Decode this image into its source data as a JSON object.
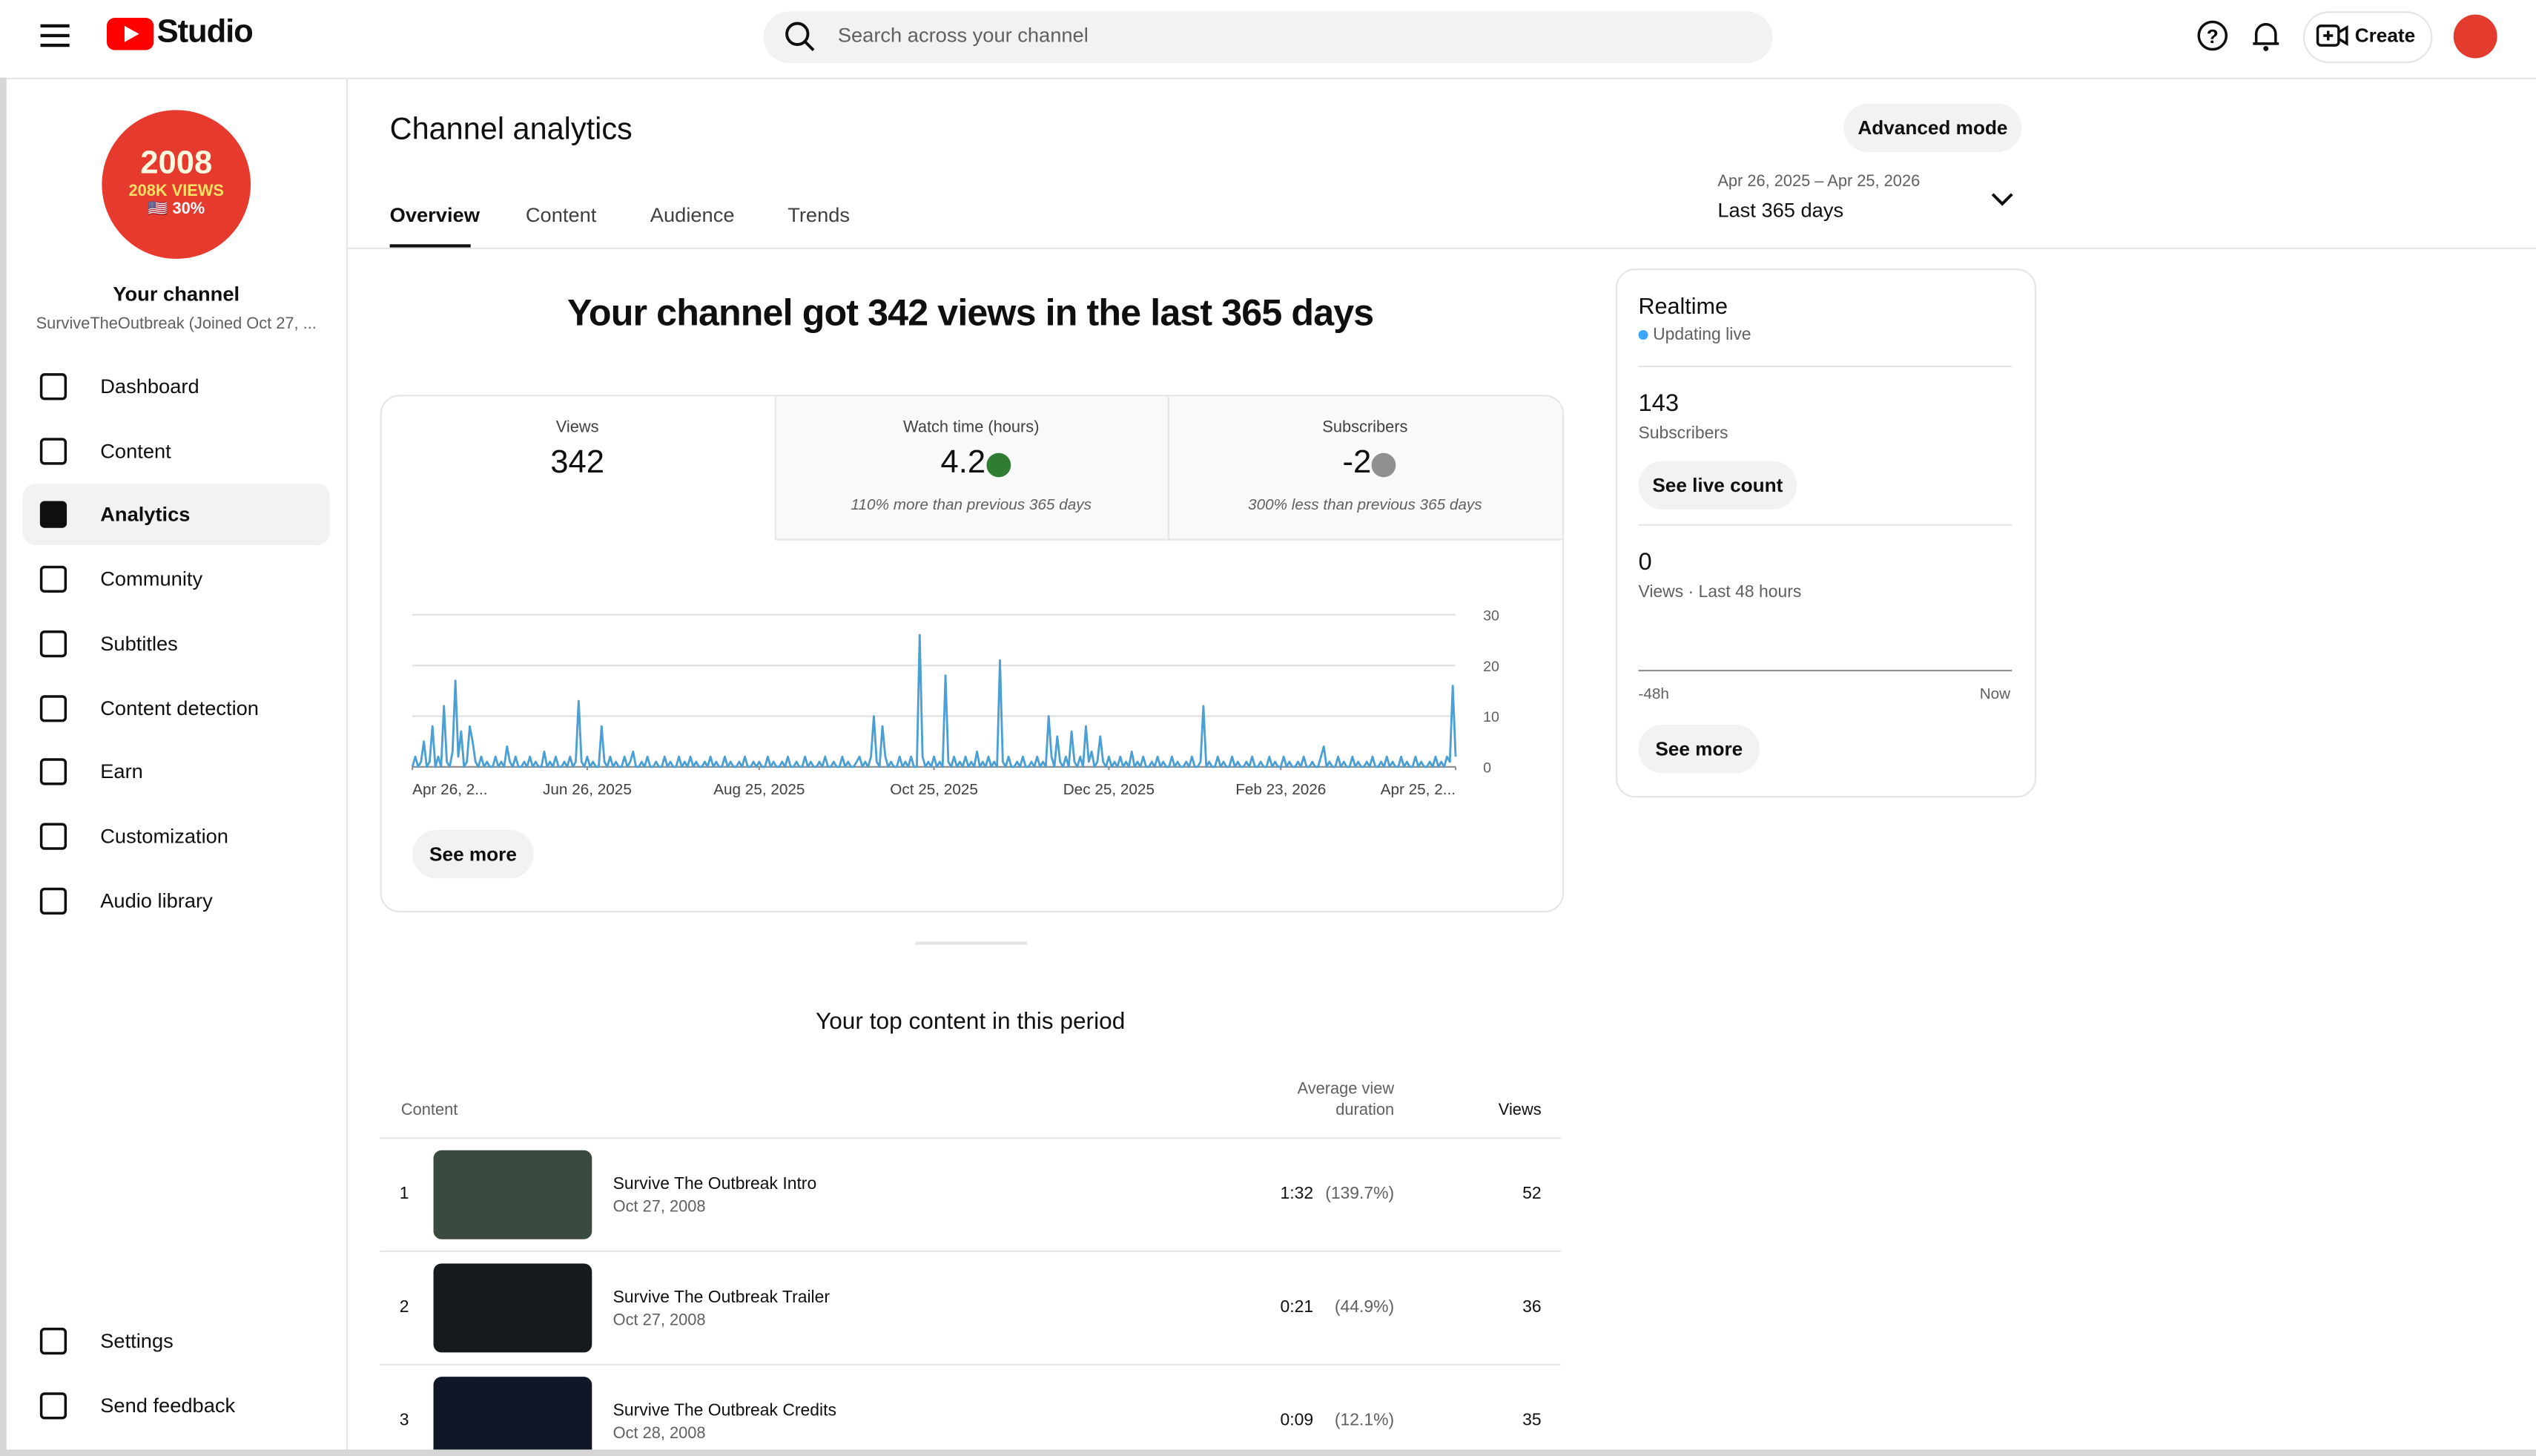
{
  "header": {
    "logo": "Studio",
    "search_placeholder": "Search across your channel",
    "create": "Create"
  },
  "sidebar": {
    "avatar": {
      "line1": "2008",
      "line2": "208K VIEWS",
      "line3": "🇺🇸 30%"
    },
    "title": "Your channel",
    "subtitle": "SurviveTheOutbreak (Joined Oct 27, ...",
    "nav": [
      "Dashboard",
      "Content",
      "Analytics",
      "Community",
      "Subtitles",
      "Content detection",
      "Earn",
      "Customization",
      "Audio library"
    ],
    "footer": [
      "Settings",
      "Send feedback"
    ]
  },
  "page": {
    "title": "Channel analytics",
    "advanced": "Advanced mode",
    "date_range": "Apr 26, 2025 – Apr 25, 2026",
    "period": "Last 365 days",
    "tabs": [
      "Overview",
      "Content",
      "Audience",
      "Trends"
    ]
  },
  "summary": {
    "headline": "Your channel got 342 views in the last 365 days",
    "metrics": [
      {
        "label": "Views",
        "value": 342
      },
      {
        "label": "Watch time (hours)",
        "value": 4.2,
        "note": "110% more than previous 365 days"
      },
      {
        "label": "Subscribers",
        "value": -2,
        "note": "300% less than previous 365 days"
      }
    ],
    "see_more": "See more"
  },
  "chart_data": {
    "type": "line",
    "color": "#4a9fd4",
    "grid": true,
    "ylim": [
      0,
      30
    ],
    "yticks": [
      0,
      10,
      20,
      30
    ],
    "xlim": [
      0,
      364
    ],
    "xticks": [
      {
        "value": 0,
        "label": "Apr 26, 2..."
      },
      {
        "value": 61,
        "label": "Jun 26, 2025"
      },
      {
        "value": 121,
        "label": "Aug 25, 2025"
      },
      {
        "value": 182,
        "label": "Oct 25, 2025"
      },
      {
        "value": 243,
        "label": "Dec 25, 2025"
      },
      {
        "value": 303,
        "label": "Feb 23, 2026"
      },
      {
        "value": 364,
        "label": "Apr 25, 2..."
      }
    ],
    "values": [
      0,
      2,
      0,
      1,
      5,
      0,
      1,
      8,
      0,
      2,
      0,
      12,
      1,
      0,
      3,
      17,
      2,
      7,
      0,
      1,
      8,
      5,
      1,
      0,
      2,
      0,
      1,
      0,
      0,
      2,
      0,
      1,
      0,
      4,
      1,
      0,
      2,
      0,
      0,
      1,
      0,
      2,
      0,
      1,
      0,
      0,
      3,
      0,
      1,
      0,
      2,
      0,
      0,
      1,
      0,
      2,
      0,
      1,
      13,
      1,
      0,
      2,
      0,
      1,
      0,
      0,
      8,
      1,
      0,
      2,
      0,
      1,
      0,
      0,
      2,
      0,
      1,
      3,
      0,
      0,
      1,
      0,
      2,
      0,
      0,
      1,
      0,
      0,
      2,
      0,
      1,
      0,
      0,
      2,
      0,
      1,
      0,
      2,
      0,
      1,
      0,
      0,
      1,
      0,
      2,
      0,
      1,
      0,
      0,
      2,
      0,
      1,
      0,
      0,
      1,
      0,
      2,
      0,
      0,
      1,
      0,
      1,
      0,
      0,
      2,
      0,
      1,
      0,
      0,
      1,
      0,
      2,
      0,
      0,
      1,
      0,
      0,
      2,
      0,
      1,
      0,
      0,
      1,
      0,
      2,
      0,
      0,
      1,
      0,
      0,
      2,
      0,
      1,
      0,
      0,
      1,
      2,
      0,
      1,
      0,
      2,
      10,
      1,
      0,
      8,
      2,
      0,
      1,
      0,
      0,
      2,
      0,
      1,
      0,
      2,
      0,
      0,
      26,
      2,
      0,
      1,
      0,
      2,
      0,
      1,
      0,
      18,
      1,
      0,
      2,
      0,
      1,
      0,
      2,
      0,
      1,
      0,
      3,
      0,
      1,
      0,
      2,
      0,
      1,
      0,
      21,
      1,
      0,
      2,
      0,
      0,
      1,
      0,
      2,
      0,
      0,
      1,
      0,
      2,
      0,
      1,
      0,
      10,
      2,
      0,
      6,
      1,
      0,
      2,
      0,
      7,
      1,
      0,
      2,
      0,
      8,
      1,
      3,
      0,
      1,
      6,
      1,
      0,
      2,
      0,
      1,
      0,
      2,
      0,
      1,
      0,
      3,
      0,
      1,
      0,
      2,
      0,
      0,
      1,
      0,
      2,
      0,
      1,
      0,
      0,
      2,
      0,
      1,
      0,
      0,
      1,
      0,
      2,
      0,
      0,
      1,
      12,
      0,
      1,
      0,
      0,
      2,
      0,
      1,
      0,
      0,
      2,
      0,
      1,
      0,
      0,
      1,
      0,
      2,
      0,
      0,
      1,
      0,
      0,
      2,
      0,
      1,
      0,
      0,
      2,
      0,
      1,
      0,
      0,
      1,
      0,
      2,
      0,
      0,
      1,
      0,
      0,
      2,
      4,
      0,
      1,
      0,
      0,
      2,
      0,
      1,
      0,
      0,
      2,
      0,
      1,
      0,
      0,
      1,
      0,
      2,
      0,
      0,
      1,
      0,
      2,
      0,
      1,
      0,
      0,
      2,
      0,
      1,
      0,
      0,
      2,
      0,
      1,
      0,
      0,
      1,
      0,
      2,
      0,
      1,
      0,
      2,
      1,
      16,
      2
    ]
  },
  "realtime": {
    "title": "Realtime",
    "status": "Updating live",
    "subscribers": 143,
    "subscribers_label": "Subscribers",
    "see_live_count": "See live count",
    "views": 0,
    "views_label": "Views · Last 48 hours",
    "axis_start": "-48h",
    "axis_end": "Now",
    "see_more": "See more"
  },
  "top_content": {
    "title": "Your top content in this period",
    "columns": [
      "Content",
      "Average view duration",
      "Views"
    ],
    "rows": [
      {
        "rank": 1,
        "title": "Survive The Outbreak Intro",
        "date": "Oct 27, 2008",
        "duration": "1:32",
        "percent": "(139.7%)",
        "views": 52
      },
      {
        "rank": 2,
        "title": "Survive The Outbreak Trailer",
        "date": "Oct 27, 2008",
        "duration": "0:21",
        "percent": "(44.9%)",
        "views": 36
      },
      {
        "rank": 3,
        "title": "Survive The Outbreak Credits",
        "date": "Oct 28, 2008",
        "duration": "0:09",
        "percent": "(12.1%)",
        "views": 35
      }
    ]
  }
}
